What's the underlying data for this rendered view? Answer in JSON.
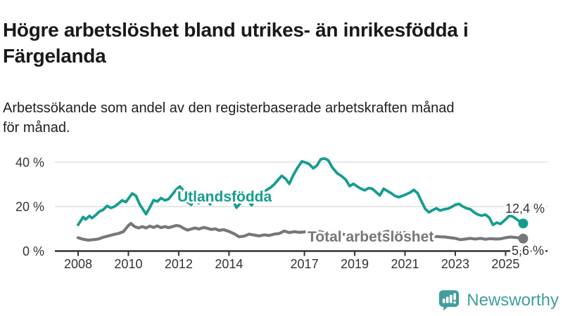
{
  "header": {
    "title_lines": [
      "Högre arbetslöshet bland utrikes- än inrikesfödda i",
      "Färgelanda"
    ],
    "subtitle_lines": [
      "Arbetssökande som andel av den registerbaserade arbetskraften månad",
      "för månad."
    ]
  },
  "chart_data": {
    "type": "line",
    "x_unit": "year (monthly data)",
    "y_unit": "percent of registered labour force",
    "xlim": [
      2007.1,
      2026.2
    ],
    "ylim": [
      0,
      44
    ],
    "grid": true,
    "legend_position": "inline-labels",
    "grid_color": "#dcdcdc",
    "axis_color": "#323232",
    "label_color": "#333333",
    "y_ticks": [
      {
        "value": 0,
        "label": "0 %"
      },
      {
        "value": 20,
        "label": "20 %"
      },
      {
        "value": 40,
        "label": "40 %"
      }
    ],
    "x_ticks": [
      {
        "value": 2008,
        "label": "2008"
      },
      {
        "value": 2010,
        "label": "2010"
      },
      {
        "value": 2012,
        "label": "2012"
      },
      {
        "value": 2014,
        "label": "2014"
      },
      {
        "value": 2017,
        "label": "2017"
      },
      {
        "value": 2019,
        "label": "2019"
      },
      {
        "value": 2021,
        "label": "2021"
      },
      {
        "value": 2023,
        "label": "2023"
      },
      {
        "value": 2025,
        "label": "2025"
      }
    ],
    "series": [
      {
        "name": "Utlandsfödda",
        "color": "#149d8f",
        "end_label": "12,4 %",
        "end_value": 12.4,
        "points": [
          [
            2008.0,
            11.8
          ],
          [
            2008.1,
            13.5
          ],
          [
            2008.2,
            15.3
          ],
          [
            2008.3,
            14.2
          ],
          [
            2008.45,
            15.8
          ],
          [
            2008.55,
            14.8
          ],
          [
            2008.7,
            16.2
          ],
          [
            2008.85,
            17.8
          ],
          [
            2009.0,
            18.6
          ],
          [
            2009.15,
            20.3
          ],
          [
            2009.3,
            19.4
          ],
          [
            2009.45,
            20.0
          ],
          [
            2009.6,
            21.3
          ],
          [
            2009.75,
            22.8
          ],
          [
            2009.9,
            22.0
          ],
          [
            2010.05,
            24.3
          ],
          [
            2010.15,
            25.9
          ],
          [
            2010.3,
            24.8
          ],
          [
            2010.45,
            21.0
          ],
          [
            2010.7,
            16.6
          ],
          [
            2010.85,
            19.5
          ],
          [
            2011.0,
            22.9
          ],
          [
            2011.15,
            22.3
          ],
          [
            2011.3,
            23.8
          ],
          [
            2011.45,
            22.8
          ],
          [
            2011.6,
            23.4
          ],
          [
            2011.75,
            25.5
          ],
          [
            2011.9,
            27.6
          ],
          [
            2012.05,
            29.0
          ],
          [
            2012.2,
            27.0
          ],
          [
            2012.35,
            22.0
          ],
          [
            2012.5,
            20.8
          ],
          [
            2012.65,
            24.5
          ],
          [
            2012.8,
            21.5
          ],
          [
            2012.95,
            25.0
          ],
          [
            2013.1,
            24.0
          ],
          [
            2013.25,
            21.0
          ],
          [
            2013.4,
            25.5
          ],
          [
            2013.55,
            24.5
          ],
          [
            2013.7,
            25.8
          ],
          [
            2013.85,
            24.5
          ],
          [
            2014.0,
            25.5
          ],
          [
            2014.15,
            23.0
          ],
          [
            2014.3,
            19.5
          ],
          [
            2014.45,
            21.5
          ],
          [
            2014.6,
            23.5
          ],
          [
            2014.75,
            22.5
          ],
          [
            2014.9,
            20.6
          ],
          [
            2015.05,
            23.0
          ],
          [
            2015.2,
            24.5
          ],
          [
            2015.35,
            26.0
          ],
          [
            2015.5,
            27.5
          ],
          [
            2015.65,
            28.5
          ],
          [
            2015.8,
            30.0
          ],
          [
            2015.95,
            32.0
          ],
          [
            2016.1,
            33.8
          ],
          [
            2016.25,
            32.5
          ],
          [
            2016.4,
            30.2
          ],
          [
            2016.55,
            34.0
          ],
          [
            2016.7,
            37.0
          ],
          [
            2016.9,
            40.3
          ],
          [
            2017.05,
            39.8
          ],
          [
            2017.2,
            39.0
          ],
          [
            2017.35,
            37.2
          ],
          [
            2017.5,
            38.5
          ],
          [
            2017.65,
            41.3
          ],
          [
            2017.8,
            41.6
          ],
          [
            2017.95,
            40.8
          ],
          [
            2018.1,
            37.7
          ],
          [
            2018.3,
            35.0
          ],
          [
            2018.5,
            33.5
          ],
          [
            2018.65,
            32.0
          ],
          [
            2018.8,
            29.2
          ],
          [
            2018.95,
            30.2
          ],
          [
            2019.1,
            29.0
          ],
          [
            2019.25,
            28.0
          ],
          [
            2019.4,
            27.3
          ],
          [
            2019.55,
            28.3
          ],
          [
            2019.7,
            28.0
          ],
          [
            2019.85,
            26.5
          ],
          [
            2020.0,
            25.0
          ],
          [
            2020.15,
            28.0
          ],
          [
            2020.3,
            27.0
          ],
          [
            2020.45,
            26.0
          ],
          [
            2020.6,
            24.8
          ],
          [
            2020.75,
            24.2
          ],
          [
            2020.9,
            24.8
          ],
          [
            2021.05,
            25.5
          ],
          [
            2021.2,
            26.3
          ],
          [
            2021.35,
            27.5
          ],
          [
            2021.5,
            26.0
          ],
          [
            2021.65,
            22.5
          ],
          [
            2021.8,
            19.0
          ],
          [
            2021.95,
            17.4
          ],
          [
            2022.1,
            18.4
          ],
          [
            2022.25,
            19.2
          ],
          [
            2022.4,
            18.2
          ],
          [
            2022.55,
            18.8
          ],
          [
            2022.7,
            19.0
          ],
          [
            2022.85,
            19.8
          ],
          [
            2023.0,
            20.8
          ],
          [
            2023.15,
            21.2
          ],
          [
            2023.3,
            20.0
          ],
          [
            2023.45,
            19.2
          ],
          [
            2023.6,
            18.8
          ],
          [
            2023.75,
            17.4
          ],
          [
            2023.9,
            16.4
          ],
          [
            2024.05,
            15.9
          ],
          [
            2024.2,
            16.4
          ],
          [
            2024.35,
            15.0
          ],
          [
            2024.5,
            11.8
          ],
          [
            2024.65,
            12.8
          ],
          [
            2024.8,
            12.2
          ],
          [
            2025.0,
            14.2
          ],
          [
            2025.15,
            15.9
          ],
          [
            2025.3,
            15.4
          ],
          [
            2025.45,
            14.2
          ],
          [
            2025.6,
            13.0
          ],
          [
            2025.7,
            12.4
          ]
        ]
      },
      {
        "name": "Total arbetslöshet",
        "color": "#76767b",
        "end_label": "5,6 %",
        "end_value": 5.6,
        "points": [
          [
            2008.0,
            6.0
          ],
          [
            2008.2,
            5.3
          ],
          [
            2008.4,
            4.9
          ],
          [
            2008.6,
            5.1
          ],
          [
            2008.8,
            5.4
          ],
          [
            2009.0,
            6.2
          ],
          [
            2009.2,
            6.8
          ],
          [
            2009.4,
            7.4
          ],
          [
            2009.6,
            7.9
          ],
          [
            2009.8,
            8.7
          ],
          [
            2010.0,
            11.5
          ],
          [
            2010.1,
            12.4
          ],
          [
            2010.25,
            11.0
          ],
          [
            2010.4,
            10.4
          ],
          [
            2010.55,
            11.0
          ],
          [
            2010.7,
            10.4
          ],
          [
            2010.85,
            11.2
          ],
          [
            2011.0,
            10.6
          ],
          [
            2011.15,
            11.3
          ],
          [
            2011.3,
            10.5
          ],
          [
            2011.45,
            11.0
          ],
          [
            2011.6,
            10.5
          ],
          [
            2011.75,
            11.0
          ],
          [
            2011.9,
            11.5
          ],
          [
            2012.05,
            11.2
          ],
          [
            2012.2,
            10.2
          ],
          [
            2012.35,
            9.4
          ],
          [
            2012.5,
            9.9
          ],
          [
            2012.65,
            10.4
          ],
          [
            2012.8,
            9.9
          ],
          [
            2013.0,
            10.6
          ],
          [
            2013.15,
            10.2
          ],
          [
            2013.3,
            9.7
          ],
          [
            2013.45,
            10.0
          ],
          [
            2013.6,
            9.3
          ],
          [
            2013.8,
            9.6
          ],
          [
            2014.0,
            8.8
          ],
          [
            2014.2,
            7.8
          ],
          [
            2014.4,
            6.4
          ],
          [
            2014.6,
            6.7
          ],
          [
            2014.8,
            7.6
          ],
          [
            2015.0,
            7.2
          ],
          [
            2015.2,
            6.8
          ],
          [
            2015.4,
            7.3
          ],
          [
            2015.6,
            7.0
          ],
          [
            2015.8,
            7.6
          ],
          [
            2016.0,
            7.9
          ],
          [
            2016.2,
            9.0
          ],
          [
            2016.4,
            8.3
          ],
          [
            2016.6,
            8.7
          ],
          [
            2016.8,
            8.4
          ],
          [
            2017.0,
            8.6
          ],
          [
            2017.2,
            8.9
          ],
          [
            2017.4,
            8.4
          ],
          [
            2017.6,
            8.7
          ],
          [
            2017.8,
            8.3
          ],
          [
            2018.0,
            8.1
          ],
          [
            2018.25,
            7.8
          ],
          [
            2018.5,
            7.5
          ],
          [
            2018.75,
            7.3
          ],
          [
            2019.0,
            7.2
          ],
          [
            2019.25,
            7.4
          ],
          [
            2019.5,
            7.1
          ],
          [
            2019.75,
            7.3
          ],
          [
            2020.0,
            7.6
          ],
          [
            2020.25,
            8.8
          ],
          [
            2020.5,
            8.9
          ],
          [
            2020.75,
            8.5
          ],
          [
            2021.0,
            8.3
          ],
          [
            2021.25,
            8.0
          ],
          [
            2021.5,
            7.6
          ],
          [
            2021.75,
            7.2
          ],
          [
            2022.0,
            6.8
          ],
          [
            2022.2,
            6.6
          ],
          [
            2022.4,
            6.4
          ],
          [
            2022.6,
            6.3
          ],
          [
            2022.8,
            6.0
          ],
          [
            2023.0,
            5.7
          ],
          [
            2023.2,
            5.1
          ],
          [
            2023.4,
            5.4
          ],
          [
            2023.6,
            5.7
          ],
          [
            2023.8,
            5.4
          ],
          [
            2024.0,
            5.7
          ],
          [
            2024.2,
            5.3
          ],
          [
            2024.4,
            5.6
          ],
          [
            2024.6,
            5.4
          ],
          [
            2024.8,
            5.5
          ],
          [
            2025.0,
            6.0
          ],
          [
            2025.2,
            6.3
          ],
          [
            2025.4,
            6.1
          ],
          [
            2025.55,
            5.9
          ],
          [
            2025.7,
            5.6
          ]
        ]
      }
    ]
  },
  "branding": {
    "name": "Newsworthy",
    "icon": "bar-chart-speech-bubble-icon",
    "color": "#429d9d"
  }
}
